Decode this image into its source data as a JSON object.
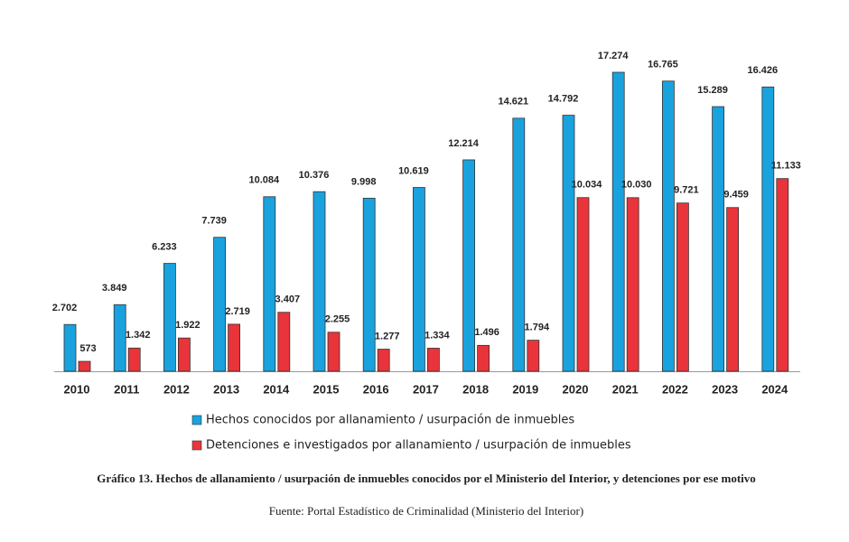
{
  "chart_data": {
    "type": "bar",
    "categories": [
      "2010",
      "2011",
      "2012",
      "2013",
      "2014",
      "2015",
      "2016",
      "2017",
      "2018",
      "2019",
      "2020",
      "2021",
      "2022",
      "2023",
      "2024"
    ],
    "series": [
      {
        "name": "Hechos conocidos por allanamiento / usurpación de inmuebles",
        "color": "#1aa2de",
        "values": [
          2702,
          3849,
          6233,
          7739,
          10084,
          10376,
          9998,
          10619,
          12214,
          14621,
          14792,
          17274,
          16765,
          15289,
          16426
        ],
        "value_labels": [
          "2.702",
          "3.849",
          "6.233",
          "7.739",
          "10.084",
          "10.376",
          "9.998",
          "10.619",
          "12.214",
          "14.621",
          "14.792",
          "17.274",
          "16.765",
          "15.289",
          "16.426"
        ]
      },
      {
        "name": "Detenciones e investigados por allanamiento / usurpación de inmuebles",
        "color": "#e8343a",
        "values": [
          573,
          1342,
          1922,
          2719,
          3407,
          2255,
          1277,
          1334,
          1496,
          1794,
          10034,
          10030,
          9721,
          9459,
          11133
        ],
        "value_labels": [
          "573",
          "1.342",
          "1.922",
          "2.719",
          "3.407",
          "2.255",
          "1.277",
          "1.334",
          "1.496",
          "1.794",
          "10.034",
          "10.030",
          "9.721",
          "9.459",
          "11.133"
        ]
      }
    ],
    "caption": "Gráfico 13. Hechos de allanamiento / usurpación de inmuebles conocidos por el Ministerio del Interior, y detenciones por ese motivo",
    "source": "Fuente: Portal Estadístico de Criminalidad (Ministerio del Interior)"
  }
}
